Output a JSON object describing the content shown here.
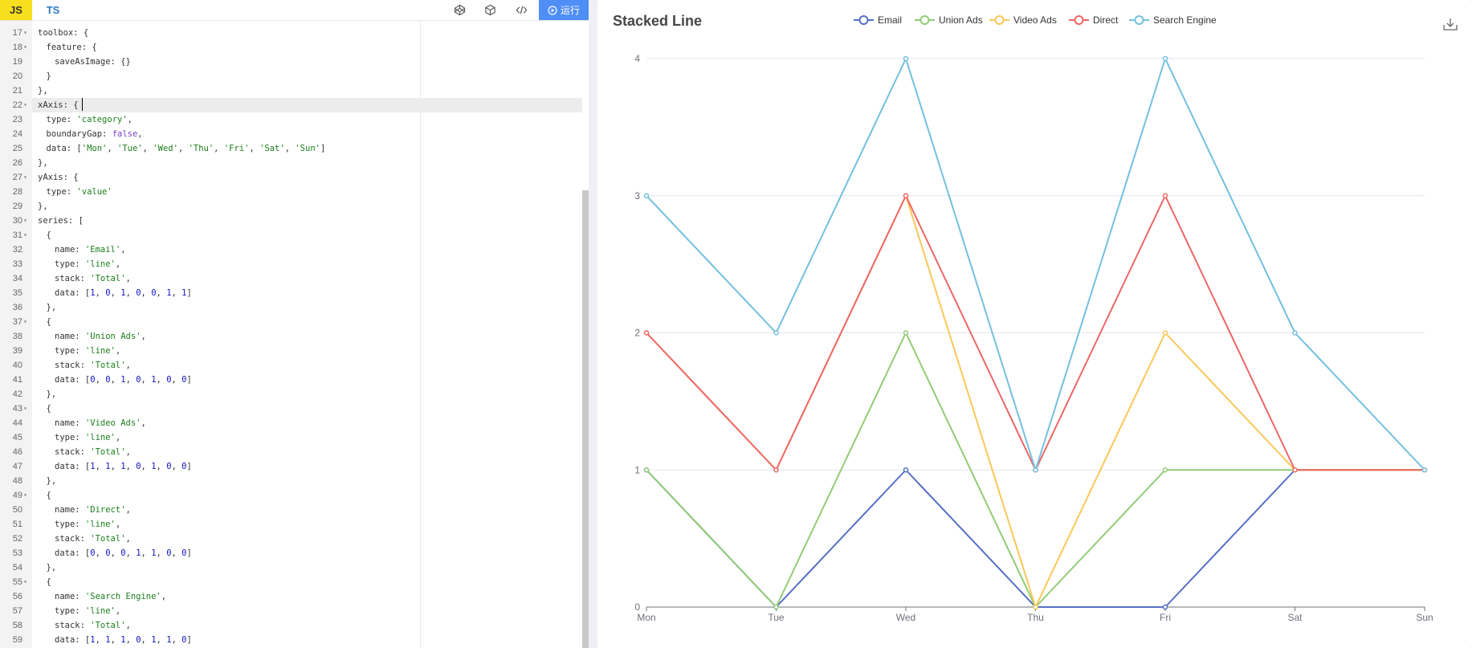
{
  "editor": {
    "tabs": {
      "js": "JS",
      "ts": "TS"
    },
    "toolbar_icons": [
      "codepen-icon",
      "codesandbox-icon",
      "embed-code-icon"
    ],
    "run_label": "运行",
    "lines": [
      {
        "num": "17",
        "fold": true,
        "indent": 0,
        "html": "toolbox: {"
      },
      {
        "num": "18",
        "fold": true,
        "indent": 1,
        "html": "feature: {"
      },
      {
        "num": "19",
        "fold": false,
        "indent": 2,
        "html": "saveAsImage: {}"
      },
      {
        "num": "20",
        "fold": false,
        "indent": 1,
        "html": "}"
      },
      {
        "num": "21",
        "fold": false,
        "indent": 0,
        "html": "},"
      },
      {
        "num": "22",
        "fold": true,
        "indent": 0,
        "html": "xAxis: {",
        "active": true
      },
      {
        "num": "23",
        "fold": false,
        "indent": 1,
        "html": "type: <span class='s'>'category'</span>,"
      },
      {
        "num": "24",
        "fold": false,
        "indent": 1,
        "html": "boundaryGap: <span class='k'>false</span>,"
      },
      {
        "num": "25",
        "fold": false,
        "indent": 1,
        "html": "data: [<span class='s'>'Mon'</span>, <span class='s'>'Tue'</span>, <span class='s'>'Wed'</span>, <span class='s'>'Thu'</span>, <span class='s'>'Fri'</span>, <span class='s'>'Sat'</span>, <span class='s'>'Sun'</span>]"
      },
      {
        "num": "26",
        "fold": false,
        "indent": 0,
        "html": "},"
      },
      {
        "num": "27",
        "fold": true,
        "indent": 0,
        "html": "yAxis: {"
      },
      {
        "num": "28",
        "fold": false,
        "indent": 1,
        "html": "type: <span class='s'>'value'</span>"
      },
      {
        "num": "29",
        "fold": false,
        "indent": 0,
        "html": "},"
      },
      {
        "num": "30",
        "fold": true,
        "indent": 0,
        "html": "series: ["
      },
      {
        "num": "31",
        "fold": true,
        "indent": 1,
        "html": "{"
      },
      {
        "num": "32",
        "fold": false,
        "indent": 2,
        "html": "name: <span class='s'>'Email'</span>,"
      },
      {
        "num": "33",
        "fold": false,
        "indent": 2,
        "html": "type: <span class='s'>'line'</span>,"
      },
      {
        "num": "34",
        "fold": false,
        "indent": 2,
        "html": "stack: <span class='s'>'Total'</span>,"
      },
      {
        "num": "35",
        "fold": false,
        "indent": 2,
        "html": "data: [<span class='n'>1</span>, <span class='n'>0</span>, <span class='n'>1</span>, <span class='n'>0</span>, <span class='n'>0</span>, <span class='n'>1</span>, <span class='n'>1</span>]"
      },
      {
        "num": "36",
        "fold": false,
        "indent": 1,
        "html": "},"
      },
      {
        "num": "37",
        "fold": true,
        "indent": 1,
        "html": "{"
      },
      {
        "num": "38",
        "fold": false,
        "indent": 2,
        "html": "name: <span class='s'>'Union Ads'</span>,"
      },
      {
        "num": "39",
        "fold": false,
        "indent": 2,
        "html": "type: <span class='s'>'line'</span>,"
      },
      {
        "num": "40",
        "fold": false,
        "indent": 2,
        "html": "stack: <span class='s'>'Total'</span>,"
      },
      {
        "num": "41",
        "fold": false,
        "indent": 2,
        "html": "data: [<span class='n'>0</span>, <span class='n'>0</span>, <span class='n'>1</span>, <span class='n'>0</span>, <span class='n'>1</span>, <span class='n'>0</span>, <span class='n'>0</span>]"
      },
      {
        "num": "42",
        "fold": false,
        "indent": 1,
        "html": "},"
      },
      {
        "num": "43",
        "fold": true,
        "indent": 1,
        "html": "{"
      },
      {
        "num": "44",
        "fold": false,
        "indent": 2,
        "html": "name: <span class='s'>'Video Ads'</span>,"
      },
      {
        "num": "45",
        "fold": false,
        "indent": 2,
        "html": "type: <span class='s'>'line'</span>,"
      },
      {
        "num": "46",
        "fold": false,
        "indent": 2,
        "html": "stack: <span class='s'>'Total'</span>,"
      },
      {
        "num": "47",
        "fold": false,
        "indent": 2,
        "html": "data: [<span class='n'>1</span>, <span class='n'>1</span>, <span class='n'>1</span>, <span class='n'>0</span>, <span class='n'>1</span>, <span class='n'>0</span>, <span class='n'>0</span>]"
      },
      {
        "num": "48",
        "fold": false,
        "indent": 1,
        "html": "},"
      },
      {
        "num": "49",
        "fold": true,
        "indent": 1,
        "html": "{"
      },
      {
        "num": "50",
        "fold": false,
        "indent": 2,
        "html": "name: <span class='s'>'Direct'</span>,"
      },
      {
        "num": "51",
        "fold": false,
        "indent": 2,
        "html": "type: <span class='s'>'line'</span>,"
      },
      {
        "num": "52",
        "fold": false,
        "indent": 2,
        "html": "stack: <span class='s'>'Total'</span>,"
      },
      {
        "num": "53",
        "fold": false,
        "indent": 2,
        "html": "data: [<span class='n'>0</span>, <span class='n'>0</span>, <span class='n'>0</span>, <span class='n'>1</span>, <span class='n'>1</span>, <span class='n'>0</span>, <span class='n'>0</span>]"
      },
      {
        "num": "54",
        "fold": false,
        "indent": 1,
        "html": "},"
      },
      {
        "num": "55",
        "fold": true,
        "indent": 1,
        "html": "{"
      },
      {
        "num": "56",
        "fold": false,
        "indent": 2,
        "html": "name: <span class='s'>'Search Engine'</span>,"
      },
      {
        "num": "57",
        "fold": false,
        "indent": 2,
        "html": "type: <span class='s'>'line'</span>,"
      },
      {
        "num": "58",
        "fold": false,
        "indent": 2,
        "html": "stack: <span class='s'>'Total'</span>,"
      },
      {
        "num": "59",
        "fold": false,
        "indent": 2,
        "html": "data: [<span class='n'>1</span>, <span class='n'>1</span>, <span class='n'>1</span>, <span class='n'>0</span>, <span class='n'>1</span>, <span class='n'>1</span>, <span class='n'>0</span>]"
      }
    ]
  },
  "chart_data": {
    "type": "line",
    "title": "Stacked Line",
    "stacked": true,
    "categories": [
      "Mon",
      "Tue",
      "Wed",
      "Thu",
      "Fri",
      "Sat",
      "Sun"
    ],
    "series": [
      {
        "name": "Email",
        "color": "#5470c6",
        "values": [
          1,
          0,
          1,
          0,
          0,
          1,
          1
        ]
      },
      {
        "name": "Union Ads",
        "color": "#91cc75",
        "values": [
          0,
          0,
          1,
          0,
          1,
          0,
          0
        ]
      },
      {
        "name": "Video Ads",
        "color": "#fac858",
        "values": [
          1,
          1,
          1,
          0,
          1,
          0,
          0
        ]
      },
      {
        "name": "Direct",
        "color": "#ee6666",
        "values": [
          0,
          0,
          0,
          1,
          1,
          0,
          0
        ]
      },
      {
        "name": "Search Engine",
        "color": "#73c0de",
        "values": [
          1,
          1,
          1,
          0,
          1,
          1,
          0
        ]
      }
    ],
    "ylim": [
      0,
      4
    ],
    "yticks": [
      0,
      1,
      2,
      3,
      4
    ],
    "grid": true,
    "legend_position": "top"
  },
  "download_icon": "download-icon"
}
